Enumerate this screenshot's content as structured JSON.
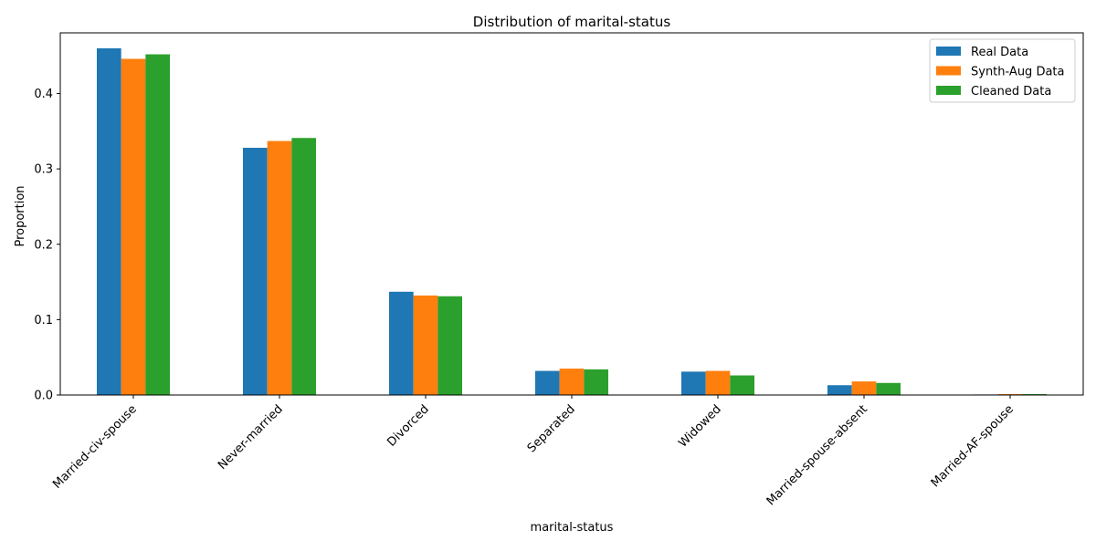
{
  "chart_data": {
    "type": "bar",
    "title": "Distribution of marital-status",
    "xlabel": "marital-status",
    "ylabel": "Proportion",
    "ylim": [
      0,
      0.4805
    ],
    "yticks": [
      0.0,
      0.1,
      0.2,
      0.3,
      0.4
    ],
    "ytick_labels": [
      "0.0",
      "0.1",
      "0.2",
      "0.3",
      "0.4"
    ],
    "categories": [
      "Married-civ-spouse",
      "Never-married",
      "Divorced",
      "Separated",
      "Widowed",
      "Married-spouse-absent",
      "Married-AF-spouse"
    ],
    "series": [
      {
        "name": "Real Data",
        "color": "#1f77b4",
        "values": [
          0.46,
          0.328,
          0.137,
          0.032,
          0.031,
          0.013,
          0.0007
        ]
      },
      {
        "name": "Synth-Aug Data",
        "color": "#ff7f0e",
        "values": [
          0.446,
          0.337,
          0.132,
          0.035,
          0.032,
          0.018,
          0.0012
        ]
      },
      {
        "name": "Cleaned Data",
        "color": "#2ca02c",
        "values": [
          0.452,
          0.341,
          0.131,
          0.034,
          0.026,
          0.016,
          0.0012
        ]
      }
    ],
    "grid": false,
    "legend_position": "top-right"
  }
}
